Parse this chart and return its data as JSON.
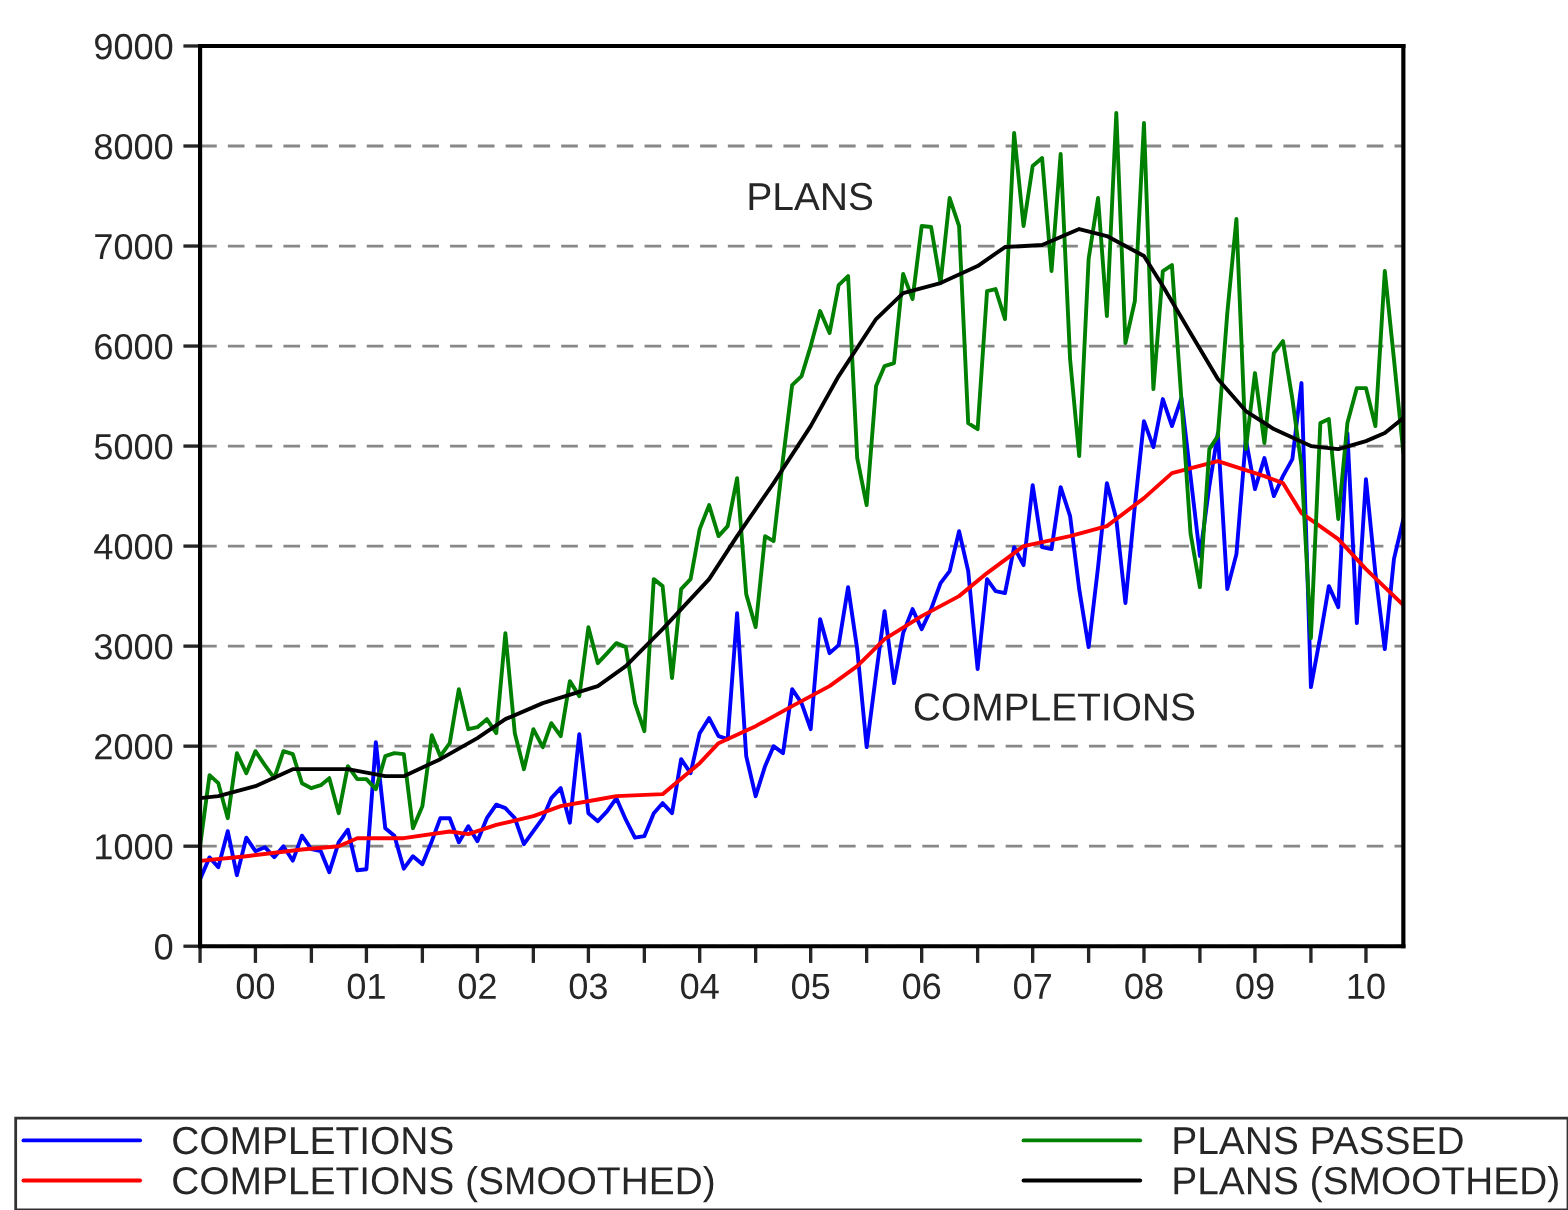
{
  "chart_data": {
    "type": "line",
    "x": [
      "2000-01",
      "2000-02",
      "2000-03",
      "2000-04",
      "2000-05",
      "2000-06",
      "2000-07",
      "2000-08",
      "2000-09",
      "2000-10",
      "2000-11",
      "2000-12",
      "2001-01",
      "2001-02",
      "2001-03",
      "2001-04",
      "2001-05",
      "2001-06",
      "2001-07",
      "2001-08",
      "2001-09",
      "2001-10",
      "2001-11",
      "2001-12",
      "2002-01",
      "2002-02",
      "2002-03",
      "2002-04",
      "2002-05",
      "2002-06",
      "2002-07",
      "2002-08",
      "2002-09",
      "2002-10",
      "2002-11",
      "2002-12",
      "2003-01",
      "2003-02",
      "2003-03",
      "2003-04",
      "2003-05",
      "2003-06",
      "2003-07",
      "2003-08",
      "2003-09",
      "2003-10",
      "2003-11",
      "2003-12",
      "2004-01",
      "2004-02",
      "2004-03",
      "2004-04",
      "2004-05",
      "2004-06",
      "2004-07",
      "2004-08",
      "2004-09",
      "2004-10",
      "2004-11",
      "2004-12",
      "2005-01",
      "2005-02",
      "2005-03",
      "2005-04",
      "2005-05",
      "2005-06",
      "2005-07",
      "2005-08",
      "2005-09",
      "2005-10",
      "2005-11",
      "2005-12",
      "2006-01",
      "2006-02",
      "2006-03",
      "2006-04",
      "2006-05",
      "2006-06",
      "2006-07",
      "2006-08",
      "2006-09",
      "2006-10",
      "2006-11",
      "2006-12",
      "2007-01",
      "2007-02",
      "2007-03",
      "2007-04",
      "2007-05",
      "2007-06",
      "2007-07",
      "2007-08",
      "2007-09",
      "2007-10",
      "2007-11",
      "2007-12",
      "2008-01",
      "2008-02",
      "2008-03",
      "2008-04",
      "2008-05",
      "2008-06",
      "2008-07",
      "2008-08",
      "2008-09",
      "2008-10",
      "2008-11",
      "2008-12",
      "2009-01",
      "2009-02",
      "2009-03",
      "2009-04",
      "2009-05",
      "2009-06",
      "2009-07",
      "2009-08",
      "2009-09",
      "2009-10",
      "2009-11",
      "2009-12",
      "2010-01",
      "2010-02",
      "2010-03",
      "2010-04",
      "2010-05",
      "2010-06",
      "2010-07",
      "2010-08",
      "2010-09",
      "2010-10",
      "2010-11"
    ],
    "series": [
      {
        "name": "COMPLETIONS",
        "color": "#0000ff",
        "values": [
          671,
          888,
          790,
          1150,
          710,
          1085,
          950,
          990,
          890,
          1000,
          855,
          1105,
          970,
          950,
          740,
          1040,
          1165,
          760,
          770,
          2040,
          1180,
          1105,
          775,
          900,
          820,
          1050,
          1280,
          1280,
          1040,
          1200,
          1050,
          1280,
          1415,
          1380,
          1280,
          1020,
          1150,
          1280,
          1480,
          1580,
          1235,
          2120,
          1330,
          1250,
          1350,
          1480,
          1265,
          1085,
          1100,
          1330,
          1430,
          1330,
          1870,
          1730,
          2130,
          2280,
          2100,
          2070,
          3330,
          1900,
          1500,
          1800,
          2000,
          1930,
          2570,
          2430,
          2170,
          3270,
          2930,
          3010,
          3590,
          2970,
          1990,
          2720,
          3350,
          2630,
          3130,
          3370,
          3170,
          3370,
          3630,
          3750,
          4150,
          3750,
          2770,
          3670,
          3550,
          3530,
          3990,
          3810,
          4610,
          3990,
          3970,
          4590,
          4300,
          3570,
          2990,
          3790,
          4630,
          4270,
          3430,
          4400,
          5250,
          4990,
          5470,
          5200,
          5480,
          4700,
          3900,
          4600,
          5130,
          3570,
          3920,
          5070,
          4570,
          4880,
          4500,
          4700,
          4870,
          5630,
          2590,
          3100,
          3600,
          3390,
          5130,
          3230,
          4670,
          3730,
          2970,
          3870,
          4270
        ]
      },
      {
        "name": "COMPLETIONS (SMOOTHED)",
        "color": "#ff0000",
        "x": [
          "2000-01",
          "2000-06",
          "2000-12",
          "2001-04",
          "2001-06",
          "2001-11",
          "2002-04",
          "2002-06",
          "2002-09",
          "2003-01",
          "2003-04",
          "2003-08",
          "2003-10",
          "2004-03",
          "2004-07",
          "2004-09",
          "2005-01",
          "2005-05",
          "2005-09",
          "2005-12",
          "2006-03",
          "2006-07",
          "2006-11",
          "2007-02",
          "2007-06",
          "2007-11",
          "2008-03",
          "2008-07",
          "2008-10",
          "2009-03",
          "2009-08",
          "2009-10",
          "2009-12",
          "2010-04",
          "2010-07",
          "2010-11"
        ],
        "values": [
          853,
          900,
          967,
          1000,
          1080,
          1080,
          1147,
          1120,
          1213,
          1300,
          1400,
          1467,
          1500,
          1520,
          1830,
          2030,
          2200,
          2400,
          2600,
          2800,
          3070,
          3300,
          3500,
          3730,
          4000,
          4100,
          4200,
          4480,
          4730,
          4850,
          4700,
          4630,
          4330,
          4070,
          3770,
          3410
        ]
      },
      {
        "name": "PLANS PASSED",
        "color": "#008000",
        "values": [
          1000,
          1710,
          1630,
          1280,
          1930,
          1730,
          1950,
          1810,
          1680,
          1950,
          1920,
          1630,
          1580,
          1610,
          1680,
          1330,
          1800,
          1670,
          1670,
          1570,
          1900,
          1930,
          1920,
          1180,
          1400,
          2110,
          1900,
          2030,
          2570,
          2170,
          2190,
          2270,
          2130,
          3130,
          2130,
          1770,
          2170,
          1990,
          2230,
          2100,
          2650,
          2500,
          3190,
          2830,
          2930,
          3030,
          2990,
          2430,
          2150,
          3670,
          3600,
          2680,
          3570,
          3670,
          4170,
          4410,
          4100,
          4200,
          4680,
          3520,
          3190,
          4100,
          4050,
          4870,
          5610,
          5700,
          6000,
          6350,
          6130,
          6610,
          6700,
          4880,
          4410,
          5600,
          5800,
          5830,
          6720,
          6470,
          7200,
          7190,
          6630,
          7480,
          7200,
          5230,
          5170,
          6550,
          6570,
          6270,
          8130,
          7200,
          7800,
          7880,
          6750,
          7920,
          5870,
          4900,
          6870,
          7480,
          6300,
          8330,
          6030,
          6450,
          8230,
          5570,
          6750,
          6810,
          5470,
          4130,
          3590,
          4970,
          5100,
          6330,
          7270,
          4970,
          5730,
          5030,
          5930,
          6050,
          5470,
          4800,
          3080,
          5230,
          5270,
          4270,
          5230,
          5580,
          5580,
          5200,
          6750,
          5870,
          4930
        ]
      },
      {
        "name": "PLANS (SMOOTHED)",
        "color": "#000000",
        "x": [
          "2000-01",
          "2000-03",
          "2000-07",
          "2000-11",
          "2001-05",
          "2001-09",
          "2001-11",
          "2002-03",
          "2002-07",
          "2002-10",
          "2003-02",
          "2003-08",
          "2003-11",
          "2004-03",
          "2004-08",
          "2004-11",
          "2005-03",
          "2005-07",
          "2005-10",
          "2006-02",
          "2006-05",
          "2006-09",
          "2007-01",
          "2007-04",
          "2007-08",
          "2007-12",
          "2008-03",
          "2008-07",
          "2008-09",
          "2008-12",
          "2009-03",
          "2009-06",
          "2009-09",
          "2010-01",
          "2010-04",
          "2010-07",
          "2010-09",
          "2010-11"
        ],
        "values": [
          1480,
          1500,
          1600,
          1770,
          1770,
          1700,
          1700,
          1870,
          2080,
          2270,
          2430,
          2600,
          2800,
          3170,
          3670,
          4100,
          4630,
          5200,
          5700,
          6270,
          6530,
          6630,
          6800,
          6990,
          7010,
          7170,
          7100,
          6900,
          6600,
          6130,
          5670,
          5350,
          5170,
          5000,
          4970,
          5050,
          5130,
          5280
        ]
      }
    ],
    "annotations": [
      "PLANS",
      "COMPLETIONS"
    ],
    "xlim": [
      "2000-01",
      "2010-11"
    ],
    "xticks": [
      {
        "value": "2000-01",
        "label": null
      },
      {
        "value": "2000-07",
        "label": "00"
      },
      {
        "value": "2001-01",
        "label": null
      },
      {
        "value": "2001-07",
        "label": "01"
      },
      {
        "value": "2002-01",
        "label": null
      },
      {
        "value": "2002-07",
        "label": "02"
      },
      {
        "value": "2003-01",
        "label": null
      },
      {
        "value": "2003-07",
        "label": "03"
      },
      {
        "value": "2004-01",
        "label": null
      },
      {
        "value": "2004-07",
        "label": "04"
      },
      {
        "value": "2005-01",
        "label": null
      },
      {
        "value": "2005-07",
        "label": "05"
      },
      {
        "value": "2006-01",
        "label": null
      },
      {
        "value": "2006-07",
        "label": "06"
      },
      {
        "value": "2007-01",
        "label": null
      },
      {
        "value": "2007-07",
        "label": "07"
      },
      {
        "value": "2008-01",
        "label": null
      },
      {
        "value": "2008-07",
        "label": "08"
      },
      {
        "value": "2009-01",
        "label": null
      },
      {
        "value": "2009-07",
        "label": "09"
      },
      {
        "value": "2010-01",
        "label": null
      },
      {
        "value": "2010-07",
        "label": "10"
      }
    ],
    "ylim": [
      0,
      9000
    ],
    "yticks": [
      0,
      1000,
      2000,
      3000,
      4000,
      5000,
      6000,
      7000,
      8000,
      9000
    ],
    "grid": "y",
    "legend": "bottom",
    "marker": "none",
    "line_style": "solid"
  }
}
